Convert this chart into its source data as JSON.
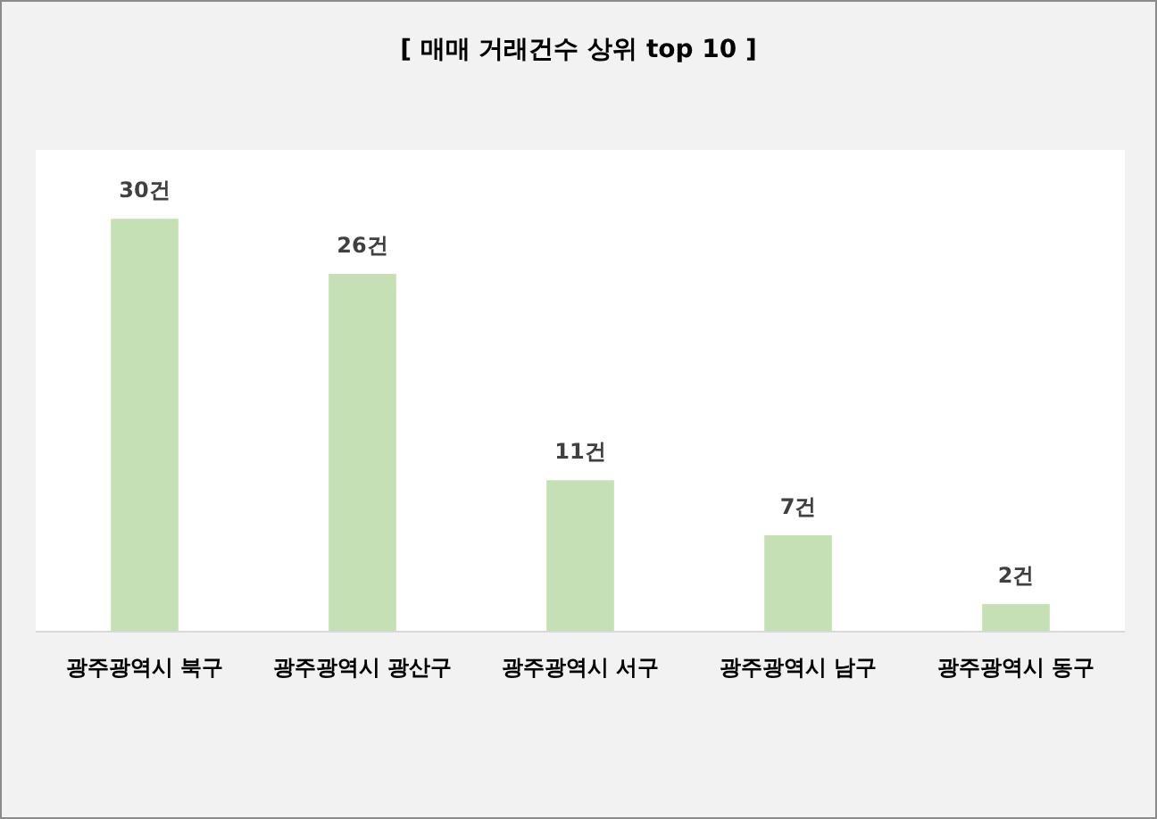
{
  "chart_data": {
    "type": "bar",
    "title": "[ 매매 거래건수 상위 top 10 ]",
    "categories": [
      "광주광역시 북구",
      "광주광역시 광산구",
      "광주광역시 서구",
      "광주광역시 남구",
      "광주광역시 동구"
    ],
    "values": [
      30,
      26,
      11,
      7,
      2
    ],
    "value_labels": [
      "30건",
      "26건",
      "11건",
      "7건",
      "2건"
    ],
    "color": "#c5e0b4",
    "tick_labels": "x"
  }
}
